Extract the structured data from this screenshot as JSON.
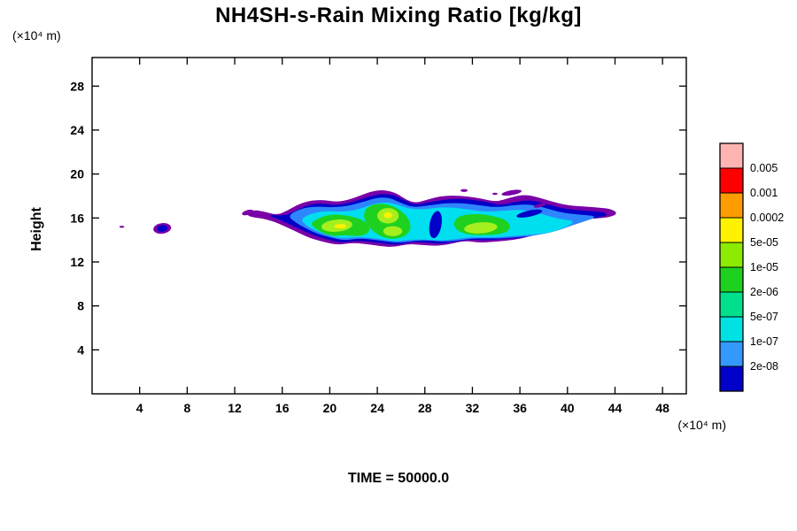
{
  "title": "NH4SH-s-Rain Mixing Ratio [kg/kg]",
  "time_label": "TIME = 50000.0",
  "ylabel": "Height",
  "y_unit_label": "(×10⁴  m)",
  "x_unit_label": "(×10⁴  m)",
  "chart_data": {
    "type": "filled-contour",
    "title": "NH4SH-s-Rain Mixing Ratio [kg/kg]",
    "xlabel": "(×10⁴ m)",
    "ylabel": "Height (×10⁴ m)",
    "time": 50000.0,
    "xlim": [
      0,
      50
    ],
    "ylim": [
      0,
      30.6
    ],
    "x_ticks": [
      4,
      8,
      12,
      16,
      20,
      24,
      28,
      32,
      36,
      40,
      44,
      48
    ],
    "y_ticks": [
      4,
      8,
      12,
      16,
      20,
      24,
      28
    ],
    "grid": false,
    "legend_position": "right-colorbar",
    "colorbar": {
      "levels": [
        "0.005",
        "0.001",
        "0.0002",
        "5e-05",
        "1e-05",
        "2e-06",
        "5e-07",
        "1e-07",
        "2e-08"
      ],
      "cell_colors_top_to_bottom": [
        "#ffb4b4",
        "#ff0000",
        "#ff9c00",
        "#fff200",
        "#8ceb00",
        "#1ed11e",
        "#00e08c",
        "#00e1e1",
        "#3399ff",
        "#0000c8"
      ]
    },
    "palette": {
      "purple": "#7a00a8",
      "darkblue": "#0000c8",
      "blue": "#2e86ff",
      "cyan": "#00dff0",
      "green": "#1fd11f",
      "yellowgreen": "#a5ef1e",
      "yellow": "#fff200"
    },
    "description": "Cloud-like filled contour band of rain mixing ratio between heights ~13.5 and ~18.5 (×10⁴ m), spanning x ≈ 13–44 (×10⁴ m); small isolated blob near x ≈ 6, height ≈ 15; outermost fringe purple grading inward through blue, cyan, green to yellow-green cores.",
    "regions": [
      {
        "name": "outer-purple",
        "color_key": "purple",
        "points": [
          [
            13.0,
            16.3
          ],
          [
            13.6,
            16.7
          ],
          [
            14.6,
            16.5
          ],
          [
            15.6,
            16.2
          ],
          [
            16.4,
            16.6
          ],
          [
            17.2,
            17.1
          ],
          [
            18.2,
            17.5
          ],
          [
            19.4,
            17.6
          ],
          [
            20.6,
            17.4
          ],
          [
            21.6,
            17.6
          ],
          [
            22.6,
            18.0
          ],
          [
            23.6,
            18.4
          ],
          [
            24.6,
            18.5
          ],
          [
            25.6,
            18.2
          ],
          [
            26.4,
            17.6
          ],
          [
            27.2,
            17.3
          ],
          [
            28.2,
            17.6
          ],
          [
            29.2,
            17.9
          ],
          [
            30.4,
            18.0
          ],
          [
            31.6,
            17.9
          ],
          [
            32.8,
            17.7
          ],
          [
            34.0,
            17.4
          ],
          [
            35.2,
            17.8
          ],
          [
            36.4,
            18.1
          ],
          [
            37.6,
            17.8
          ],
          [
            38.8,
            17.4
          ],
          [
            40.0,
            17.1
          ],
          [
            41.2,
            17.0
          ],
          [
            42.4,
            16.9
          ],
          [
            43.6,
            16.8
          ],
          [
            44.2,
            16.4
          ],
          [
            43.4,
            16.1
          ],
          [
            42.2,
            16.0
          ],
          [
            41.0,
            15.9
          ],
          [
            39.8,
            15.6
          ],
          [
            38.6,
            15.1
          ],
          [
            37.4,
            14.6
          ],
          [
            36.2,
            14.2
          ],
          [
            35.0,
            14.0
          ],
          [
            33.8,
            13.9
          ],
          [
            32.6,
            13.8
          ],
          [
            31.4,
            14.0
          ],
          [
            30.2,
            13.7
          ],
          [
            29.0,
            13.5
          ],
          [
            27.8,
            13.6
          ],
          [
            26.6,
            13.7
          ],
          [
            25.4,
            13.4
          ],
          [
            24.2,
            13.5
          ],
          [
            23.0,
            13.7
          ],
          [
            21.8,
            13.8
          ],
          [
            20.6,
            13.6
          ],
          [
            19.4,
            13.9
          ],
          [
            18.4,
            14.2
          ],
          [
            17.4,
            14.7
          ],
          [
            16.4,
            15.2
          ],
          [
            15.4,
            15.7
          ],
          [
            14.4,
            16.0
          ],
          [
            13.6,
            16.1
          ]
        ]
      },
      {
        "name": "dark-blue",
        "color_key": "darkblue",
        "points": [
          [
            14.8,
            16.3
          ],
          [
            16.0,
            16.1
          ],
          [
            17.0,
            16.5
          ],
          [
            18.0,
            17.1
          ],
          [
            19.2,
            17.3
          ],
          [
            20.4,
            17.1
          ],
          [
            21.6,
            17.3
          ],
          [
            22.8,
            17.7
          ],
          [
            24.0,
            18.1
          ],
          [
            25.2,
            18.1
          ],
          [
            26.2,
            17.6
          ],
          [
            27.2,
            17.1
          ],
          [
            28.4,
            17.4
          ],
          [
            29.6,
            17.6
          ],
          [
            30.8,
            17.7
          ],
          [
            32.0,
            17.6
          ],
          [
            33.2,
            17.4
          ],
          [
            34.4,
            17.1
          ],
          [
            35.6,
            17.4
          ],
          [
            36.8,
            17.6
          ],
          [
            38.0,
            17.3
          ],
          [
            39.2,
            16.9
          ],
          [
            40.4,
            16.7
          ],
          [
            41.6,
            16.6
          ],
          [
            42.8,
            16.5
          ],
          [
            43.4,
            16.3
          ],
          [
            42.6,
            16.1
          ],
          [
            41.4,
            15.9
          ],
          [
            40.2,
            15.6
          ],
          [
            39.0,
            15.1
          ],
          [
            37.8,
            14.7
          ],
          [
            36.6,
            14.3
          ],
          [
            35.4,
            14.2
          ],
          [
            34.2,
            14.1
          ],
          [
            33.0,
            14.0
          ],
          [
            31.8,
            14.1
          ],
          [
            30.6,
            13.9
          ],
          [
            29.4,
            13.7
          ],
          [
            28.2,
            13.8
          ],
          [
            27.0,
            13.9
          ],
          [
            25.8,
            13.6
          ],
          [
            24.6,
            13.7
          ],
          [
            23.4,
            13.9
          ],
          [
            22.2,
            14.0
          ],
          [
            21.0,
            13.8
          ],
          [
            19.8,
            14.1
          ],
          [
            18.8,
            14.4
          ],
          [
            17.8,
            14.9
          ],
          [
            16.8,
            15.4
          ],
          [
            15.8,
            15.9
          ]
        ]
      },
      {
        "name": "mid-blue",
        "color_key": "blue",
        "points": [
          [
            16.5,
            16.2
          ],
          [
            17.6,
            16.8
          ],
          [
            18.8,
            17.0
          ],
          [
            20.0,
            16.9
          ],
          [
            21.4,
            17.0
          ],
          [
            22.8,
            17.4
          ],
          [
            24.0,
            17.8
          ],
          [
            25.0,
            17.8
          ],
          [
            26.0,
            17.3
          ],
          [
            27.0,
            16.9
          ],
          [
            28.4,
            17.1
          ],
          [
            29.8,
            17.3
          ],
          [
            31.2,
            17.3
          ],
          [
            32.6,
            17.1
          ],
          [
            34.0,
            16.9
          ],
          [
            35.4,
            17.1
          ],
          [
            36.8,
            17.2
          ],
          [
            38.0,
            16.9
          ],
          [
            39.2,
            16.5
          ],
          [
            40.4,
            16.3
          ],
          [
            41.6,
            16.2
          ],
          [
            42.4,
            16.1
          ],
          [
            41.6,
            15.8
          ],
          [
            40.4,
            15.4
          ],
          [
            39.2,
            14.9
          ],
          [
            38.0,
            14.6
          ],
          [
            36.8,
            14.4
          ],
          [
            35.6,
            14.3
          ],
          [
            34.4,
            14.2
          ],
          [
            33.2,
            14.2
          ],
          [
            32.0,
            14.2
          ],
          [
            30.8,
            14.0
          ],
          [
            29.6,
            13.9
          ],
          [
            28.4,
            14.0
          ],
          [
            27.2,
            14.0
          ],
          [
            26.0,
            13.8
          ],
          [
            24.8,
            13.9
          ],
          [
            23.6,
            14.1
          ],
          [
            22.4,
            14.2
          ],
          [
            21.2,
            14.0
          ],
          [
            20.0,
            14.3
          ],
          [
            19.0,
            14.6
          ],
          [
            18.0,
            15.1
          ],
          [
            17.2,
            15.6
          ]
        ]
      },
      {
        "name": "cyan-interior",
        "color_key": "cyan",
        "points": [
          [
            17.6,
            15.9
          ],
          [
            18.6,
            16.4
          ],
          [
            19.8,
            16.6
          ],
          [
            21.0,
            16.5
          ],
          [
            22.4,
            16.7
          ],
          [
            23.6,
            17.2
          ],
          [
            24.6,
            17.4
          ],
          [
            25.6,
            17.2
          ],
          [
            26.6,
            16.8
          ],
          [
            27.8,
            16.7
          ],
          [
            29.0,
            16.9
          ],
          [
            30.4,
            16.9
          ],
          [
            31.8,
            16.7
          ],
          [
            33.2,
            16.5
          ],
          [
            34.6,
            16.6
          ],
          [
            36.0,
            16.7
          ],
          [
            37.2,
            16.5
          ],
          [
            38.4,
            16.1
          ],
          [
            39.6,
            15.8
          ],
          [
            40.6,
            15.7
          ],
          [
            39.8,
            15.2
          ],
          [
            38.8,
            14.8
          ],
          [
            37.6,
            14.6
          ],
          [
            36.4,
            14.5
          ],
          [
            35.2,
            14.4
          ],
          [
            34.0,
            14.3
          ],
          [
            32.8,
            14.3
          ],
          [
            31.6,
            14.3
          ],
          [
            30.4,
            14.1
          ],
          [
            29.2,
            14.0
          ],
          [
            28.0,
            14.1
          ],
          [
            26.8,
            14.1
          ],
          [
            25.6,
            13.9
          ],
          [
            24.4,
            14.1
          ],
          [
            23.2,
            14.3
          ],
          [
            22.0,
            14.3
          ],
          [
            20.8,
            14.2
          ],
          [
            19.8,
            14.5
          ],
          [
            18.8,
            14.9
          ],
          [
            18.0,
            15.4
          ]
        ]
      },
      {
        "name": "green-left-lobe",
        "color_key": "green",
        "points": [
          [
            18.4,
            15.5
          ],
          [
            19.2,
            16.0
          ],
          [
            20.2,
            16.3
          ],
          [
            21.2,
            16.2
          ],
          [
            22.2,
            16.0
          ],
          [
            23.0,
            15.6
          ],
          [
            23.4,
            15.0
          ],
          [
            23.0,
            14.5
          ],
          [
            22.2,
            14.4
          ],
          [
            21.2,
            14.5
          ],
          [
            20.2,
            14.4
          ],
          [
            19.4,
            14.7
          ],
          [
            18.8,
            15.1
          ]
        ]
      },
      {
        "name": "green-middle-lobe",
        "color_key": "green",
        "points": [
          [
            23.2,
            17.0
          ],
          [
            24.2,
            17.3
          ],
          [
            25.2,
            17.1
          ],
          [
            26.0,
            16.6
          ],
          [
            26.6,
            15.9
          ],
          [
            26.8,
            15.1
          ],
          [
            26.4,
            14.4
          ],
          [
            25.4,
            14.1
          ],
          [
            24.4,
            14.3
          ],
          [
            23.6,
            14.9
          ],
          [
            23.0,
            15.7
          ],
          [
            22.9,
            16.4
          ]
        ]
      },
      {
        "name": "green-right-lobe",
        "color_key": "green",
        "points": [
          [
            30.8,
            16.1
          ],
          [
            31.8,
            16.3
          ],
          [
            32.8,
            16.3
          ],
          [
            33.8,
            16.1
          ],
          [
            34.8,
            15.8
          ],
          [
            35.2,
            15.2
          ],
          [
            34.8,
            14.7
          ],
          [
            33.8,
            14.5
          ],
          [
            32.8,
            14.5
          ],
          [
            31.8,
            14.5
          ],
          [
            30.9,
            14.8
          ],
          [
            30.4,
            15.4
          ]
        ]
      }
    ],
    "ellipses": [
      {
        "name": "wisp-left-curl",
        "color_key": "purple",
        "cx": 13.1,
        "cy": 16.5,
        "rx": 0.5,
        "ry": 0.22,
        "rot": -15
      },
      {
        "name": "wisp-top-right",
        "color_key": "purple",
        "cx": 35.3,
        "cy": 18.3,
        "rx": 0.85,
        "ry": 0.22,
        "rot": -10
      },
      {
        "name": "speck-top-middle",
        "color_key": "purple",
        "cx": 31.3,
        "cy": 18.5,
        "rx": 0.3,
        "ry": 0.13,
        "rot": 0
      },
      {
        "name": "speck-top-middle-2",
        "color_key": "purple",
        "cx": 33.9,
        "cy": 18.2,
        "rx": 0.22,
        "ry": 0.1,
        "rot": 0
      },
      {
        "name": "isolated-blob-outer",
        "color_key": "purple",
        "cx": 5.9,
        "cy": 15.05,
        "rx": 0.75,
        "ry": 0.48,
        "rot": -8
      },
      {
        "name": "isolated-blob-core",
        "color_key": "darkblue",
        "cx": 5.9,
        "cy": 15.05,
        "rx": 0.45,
        "ry": 0.3,
        "rot": -8
      },
      {
        "name": "tiny-speck-far-left",
        "color_key": "purple",
        "cx": 2.5,
        "cy": 15.2,
        "rx": 0.2,
        "ry": 0.09,
        "rot": 0
      },
      {
        "name": "swirl-right-darkblue",
        "color_key": "darkblue",
        "cx": 36.8,
        "cy": 16.4,
        "rx": 1.1,
        "ry": 0.28,
        "rot": -12
      },
      {
        "name": "swirl-right-purple",
        "color_key": "purple",
        "cx": 37.7,
        "cy": 17.15,
        "rx": 0.55,
        "ry": 0.16,
        "rot": -15
      },
      {
        "name": "intrusion-darkblue",
        "color_key": "darkblue",
        "cx": 28.9,
        "cy": 15.4,
        "rx": 0.5,
        "ry": 1.25,
        "rot": 10
      },
      {
        "name": "core-yellowgreen-left",
        "color_key": "yellowgreen",
        "cx": 20.6,
        "cy": 15.3,
        "rx": 1.3,
        "ry": 0.55,
        "rot": -5
      },
      {
        "name": "core-yellowgreen-mid-upper",
        "color_key": "yellowgreen",
        "cx": 24.9,
        "cy": 16.2,
        "rx": 0.9,
        "ry": 0.7,
        "rot": 0
      },
      {
        "name": "core-yellowgreen-mid-lower",
        "color_key": "yellowgreen",
        "cx": 25.3,
        "cy": 14.8,
        "rx": 0.8,
        "ry": 0.45,
        "rot": 0
      },
      {
        "name": "core-yellowgreen-right",
        "color_key": "yellowgreen",
        "cx": 32.7,
        "cy": 15.1,
        "rx": 1.4,
        "ry": 0.5,
        "rot": -4
      },
      {
        "name": "core-yellow-left",
        "color_key": "yellow",
        "cx": 20.9,
        "cy": 15.25,
        "rx": 0.5,
        "ry": 0.2,
        "rot": 0
      },
      {
        "name": "core-yellow-mid",
        "color_key": "yellow",
        "cx": 24.9,
        "cy": 16.25,
        "rx": 0.35,
        "ry": 0.28,
        "rot": 0
      }
    ]
  }
}
